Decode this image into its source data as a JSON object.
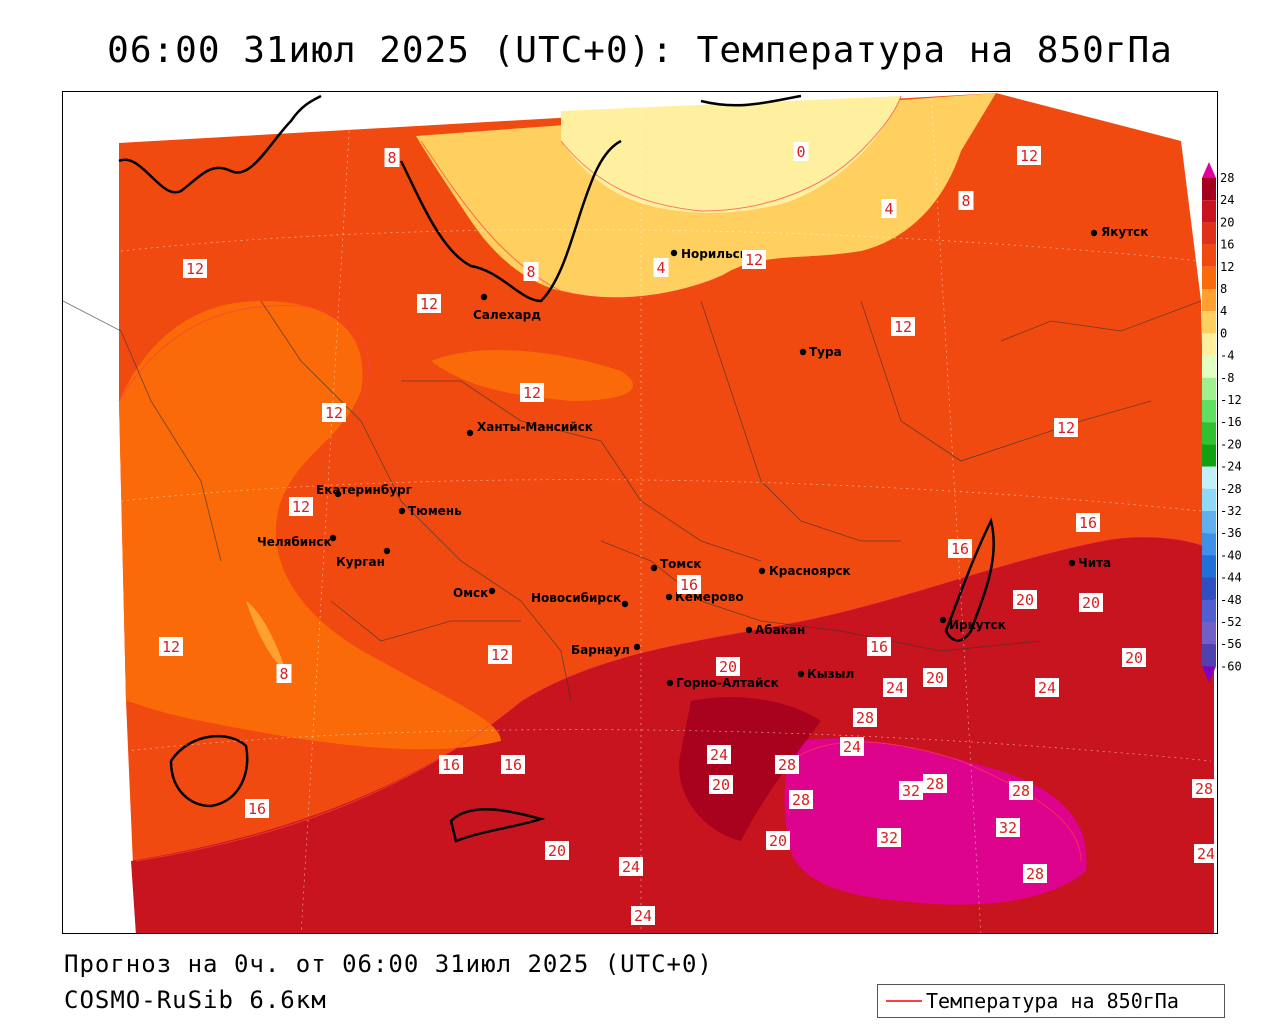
{
  "title": "06:00 31июл 2025 (UTC+0): Температура на 850гПа",
  "footer": {
    "forecast": "Прогноз на 0ч. от 06:00 31июл 2025 (UTC+0)",
    "model": "COSMO-RuSib 6.6км"
  },
  "legend": {
    "label": "Температура на 850гПа",
    "line_color": "#ff4040"
  },
  "colorbar": {
    "levels": [
      "28",
      "24",
      "20",
      "16",
      "12",
      "8",
      "4",
      "0",
      "-4",
      "-8",
      "-12",
      "-16",
      "-20",
      "-24",
      "-28",
      "-32",
      "-36",
      "-40",
      "-44",
      "-48",
      "-52",
      "-56",
      "-60"
    ],
    "colors": [
      "#a4001e",
      "#c8141e",
      "#e0301a",
      "#f04a10",
      "#fa6a08",
      "#ffa030",
      "#ffd060",
      "#fff0a0",
      "#e0ffc0",
      "#a0f090",
      "#60e060",
      "#30c030",
      "#10a010",
      "#c0f0f8",
      "#90d8f8",
      "#60b0f0",
      "#4090e8",
      "#2070d8",
      "#3050c0",
      "#5060d0",
      "#7060c8",
      "#5040b0",
      "#3020a0"
    ],
    "top_color": "#e000a0",
    "bottom_color": "#8000c0"
  },
  "cities": [
    {
      "name": "Якутск"
    },
    {
      "name": "Норильск"
    },
    {
      "name": "Салехард"
    },
    {
      "name": "Тура"
    },
    {
      "name": "Ханты-Мансийск"
    },
    {
      "name": "Екатеринбург"
    },
    {
      "name": "Тюмень"
    },
    {
      "name": "Челябинск"
    },
    {
      "name": "Курган"
    },
    {
      "name": "Омск"
    },
    {
      "name": "Новосибирск"
    },
    {
      "name": "Томск"
    },
    {
      "name": "Кемерово"
    },
    {
      "name": "Красноярск"
    },
    {
      "name": "Барнаул"
    },
    {
      "name": "Абакан"
    },
    {
      "name": "Иркутск"
    },
    {
      "name": "Чита"
    },
    {
      "name": "Кызыл"
    },
    {
      "name": "Горно-Алтайск"
    }
  ],
  "isotherm_labels": [
    "0",
    "4",
    "4",
    "8",
    "8",
    "8",
    "8",
    "12",
    "12",
    "12",
    "12",
    "12",
    "12",
    "12",
    "12",
    "12",
    "12",
    "12",
    "16",
    "16",
    "16",
    "16",
    "16",
    "16",
    "16",
    "20",
    "20",
    "20",
    "20",
    "20",
    "20",
    "20",
    "20",
    "24",
    "24",
    "24",
    "24",
    "24",
    "24",
    "24",
    "28",
    "28",
    "28",
    "28",
    "28",
    "28",
    "28",
    "32",
    "32",
    "32"
  ]
}
